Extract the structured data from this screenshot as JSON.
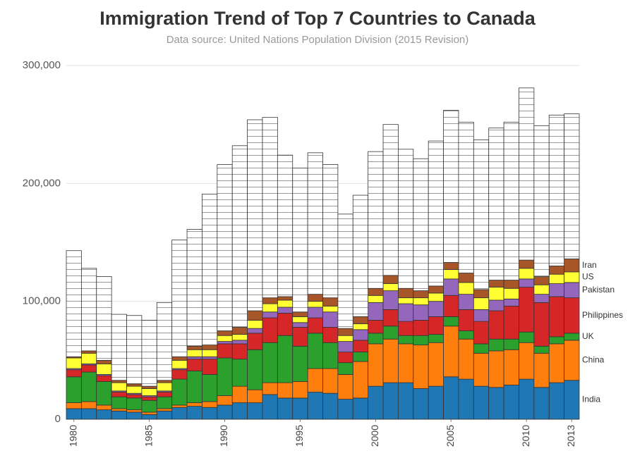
{
  "chart_data": {
    "type": "stacked_bar",
    "title": "Immigration Trend of Top 7 Countries to Canada",
    "subtitle": "Data source: United Nations Population Division (2015 Revision)",
    "x": [
      1980,
      1981,
      1982,
      1983,
      1984,
      1985,
      1986,
      1987,
      1988,
      1989,
      1990,
      1991,
      1992,
      1993,
      1994,
      1995,
      1996,
      1997,
      1998,
      1999,
      2000,
      2001,
      2002,
      2003,
      2004,
      2005,
      2006,
      2007,
      2008,
      2009,
      2010,
      2011,
      2012,
      2013
    ],
    "xlim": [
      1979.5,
      2013.5
    ],
    "xticks": [
      1980,
      1985,
      1990,
      1995,
      2000,
      2005,
      2010,
      2013
    ],
    "ylim": [
      0,
      300000
    ],
    "yticks": [
      0,
      {
        "value": 100000,
        "label": "100,000"
      },
      {
        "value": 200000,
        "label": "200,000"
      },
      {
        "value": 300000,
        "label": "300,000"
      }
    ],
    "grid": true,
    "series": [
      {
        "name": "India",
        "color": "#1f77b4",
        "values": [
          9000,
          9000,
          8000,
          7000,
          6000,
          4000,
          7000,
          10000,
          11000,
          10000,
          12000,
          14000,
          14000,
          21000,
          18000,
          18000,
          23000,
          22000,
          17000,
          18000,
          28000,
          31000,
          31000,
          26000,
          28000,
          36000,
          34000,
          28000,
          27000,
          29000,
          34000,
          27000,
          31000,
          33000
        ]
      },
      {
        "name": "China",
        "color": "#ff7f0e",
        "values": [
          5000,
          6000,
          4000,
          2000,
          2000,
          2000,
          2000,
          2000,
          3000,
          5000,
          8000,
          14000,
          11000,
          10000,
          13000,
          14000,
          20000,
          21000,
          21000,
          31000,
          36000,
          37000,
          33000,
          37000,
          37000,
          43000,
          34000,
          28000,
          31000,
          30000,
          31000,
          29000,
          33000,
          34000
        ]
      },
      {
        "name": "UK",
        "color": "#2ca02c",
        "values": [
          22000,
          25000,
          20000,
          10000,
          10000,
          10000,
          10000,
          22000,
          27000,
          23000,
          32000,
          23000,
          34000,
          34000,
          40000,
          30000,
          30000,
          22000,
          10000,
          8000,
          9000,
          11000,
          7000,
          8000,
          7000,
          8000,
          7000,
          8000,
          10000,
          9000,
          9000,
          6000,
          6000,
          6000
        ]
      },
      {
        "name": "Philippines",
        "color": "#d62728",
        "values": [
          6000,
          6000,
          5000,
          4000,
          3000,
          3000,
          4000,
          8000,
          10000,
          13000,
          12000,
          13000,
          14000,
          21000,
          19000,
          16000,
          13000,
          13000,
          9000,
          10000,
          11000,
          14000,
          12000,
          13000,
          15000,
          18000,
          18000,
          19000,
          24000,
          28000,
          38000,
          37000,
          34000,
          30000
        ]
      },
      {
        "name": "Pakistan",
        "color": "#9467bd",
        "values": [
          1000,
          1000,
          1000,
          1000,
          1000,
          1000,
          1000,
          1000,
          2000,
          2000,
          2000,
          3000,
          4000,
          5000,
          5000,
          4000,
          9000,
          13000,
          9000,
          9000,
          15000,
          16000,
          15000,
          13000,
          13000,
          14000,
          13000,
          10000,
          9000,
          6000,
          7000,
          7000,
          11000,
          13000
        ]
      },
      {
        "name": "US",
        "color": "#ffff33",
        "values": [
          9000,
          9000,
          9000,
          7000,
          6000,
          6000,
          7000,
          7000,
          6000,
          6000,
          5000,
          5000,
          7000,
          7000,
          6000,
          5000,
          5000,
          5000,
          5000,
          5000,
          6000,
          6000,
          5000,
          6000,
          7000,
          8000,
          10000,
          10000,
          11000,
          9000,
          9000,
          8000,
          8000,
          9000
        ]
      },
      {
        "name": "Iran",
        "color": "#a65628",
        "values": [
          1000,
          2000,
          3000,
          2000,
          2000,
          2000,
          2000,
          3000,
          3000,
          4000,
          4000,
          6000,
          8000,
          5000,
          3000,
          4000,
          6000,
          7000,
          6000,
          6000,
          6000,
          7000,
          8000,
          6000,
          6000,
          6000,
          8000,
          7000,
          6000,
          7000,
          7000,
          7000,
          7000,
          11000
        ]
      },
      {
        "color": "#ffffff",
        "values": [
          90000,
          70000,
          71000,
          56000,
          58000,
          56000,
          66000,
          99000,
          99000,
          128000,
          141000,
          154000,
          162000,
          153000,
          120000,
          122000,
          120000,
          113000,
          97000,
          103000,
          116000,
          128000,
          118000,
          112000,
          123000,
          129000,
          128000,
          127000,
          129000,
          134000,
          146000,
          128000,
          128000,
          123000
        ]
      }
    ]
  }
}
